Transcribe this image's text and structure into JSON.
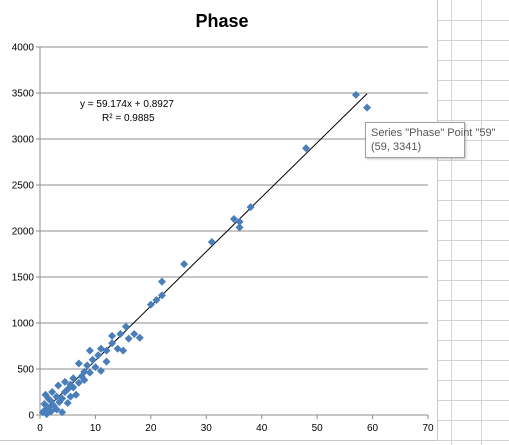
{
  "chart_data": {
    "type": "scatter",
    "title": "Phase",
    "xlabel": "",
    "ylabel": "",
    "xlim": [
      0,
      70
    ],
    "ylim": [
      0,
      4000
    ],
    "xticks": [
      "0",
      "10",
      "20",
      "30",
      "40",
      "50",
      "60",
      "70"
    ],
    "yticks": [
      "0",
      "500",
      "1000",
      "1500",
      "2000",
      "2500",
      "3000",
      "3500",
      "4000"
    ],
    "grid": "horizontal",
    "legend": "none",
    "series": [
      {
        "color": "#4a7ebb",
        "marker": "diamond",
        "points": [
          [
            0.5,
            30
          ],
          [
            0.8,
            120
          ],
          [
            1,
            60
          ],
          [
            1,
            220
          ],
          [
            1.2,
            10
          ],
          [
            1.5,
            180
          ],
          [
            1.5,
            80
          ],
          [
            2,
            40
          ],
          [
            2,
            150
          ],
          [
            2.2,
            250
          ],
          [
            2.5,
            100
          ],
          [
            3,
            200
          ],
          [
            3,
            60
          ],
          [
            3.3,
            320
          ],
          [
            3.5,
            140
          ],
          [
            4,
            180
          ],
          [
            4,
            30
          ],
          [
            4.5,
            360
          ],
          [
            4.5,
            250
          ],
          [
            5,
            280
          ],
          [
            5,
            130
          ],
          [
            5.5,
            200
          ],
          [
            5.5,
            330
          ],
          [
            6,
            400
          ],
          [
            6,
            300
          ],
          [
            6.5,
            220
          ],
          [
            7,
            350
          ],
          [
            7,
            560
          ],
          [
            7.5,
            420
          ],
          [
            8,
            380
          ],
          [
            8,
            470
          ],
          [
            8.5,
            540
          ],
          [
            9,
            700
          ],
          [
            9,
            460
          ],
          [
            9.5,
            600
          ],
          [
            10,
            520
          ],
          [
            10.5,
            650
          ],
          [
            11,
            480
          ],
          [
            11,
            720
          ],
          [
            12,
            700
          ],
          [
            12,
            580
          ],
          [
            13,
            780
          ],
          [
            13,
            860
          ],
          [
            14,
            720
          ],
          [
            14.5,
            880
          ],
          [
            15,
            700
          ],
          [
            15.5,
            960
          ],
          [
            16,
            830
          ],
          [
            17,
            880
          ],
          [
            18,
            840
          ],
          [
            20,
            1200
          ],
          [
            21,
            1250
          ],
          [
            22,
            1300
          ],
          [
            22,
            1450
          ],
          [
            26,
            1640
          ],
          [
            31,
            1880
          ],
          [
            35,
            2130
          ],
          [
            36,
            2040
          ],
          [
            36,
            2100
          ],
          [
            38,
            2260
          ],
          [
            48,
            2900
          ],
          [
            57,
            3480
          ],
          [
            59,
            3341
          ]
        ]
      }
    ],
    "trendline": {
      "type": "linear",
      "slope": 59.174,
      "intercept": 0.8927,
      "x_range": [
        1,
        59
      ]
    },
    "annotations": {
      "equation": "y = 59.174x + 0.8927",
      "r_squared": "R² = 0.9885"
    },
    "tooltip": {
      "line1": "Series \"Phase\" Point \"59\"",
      "line2": "(59, 3341)"
    }
  }
}
